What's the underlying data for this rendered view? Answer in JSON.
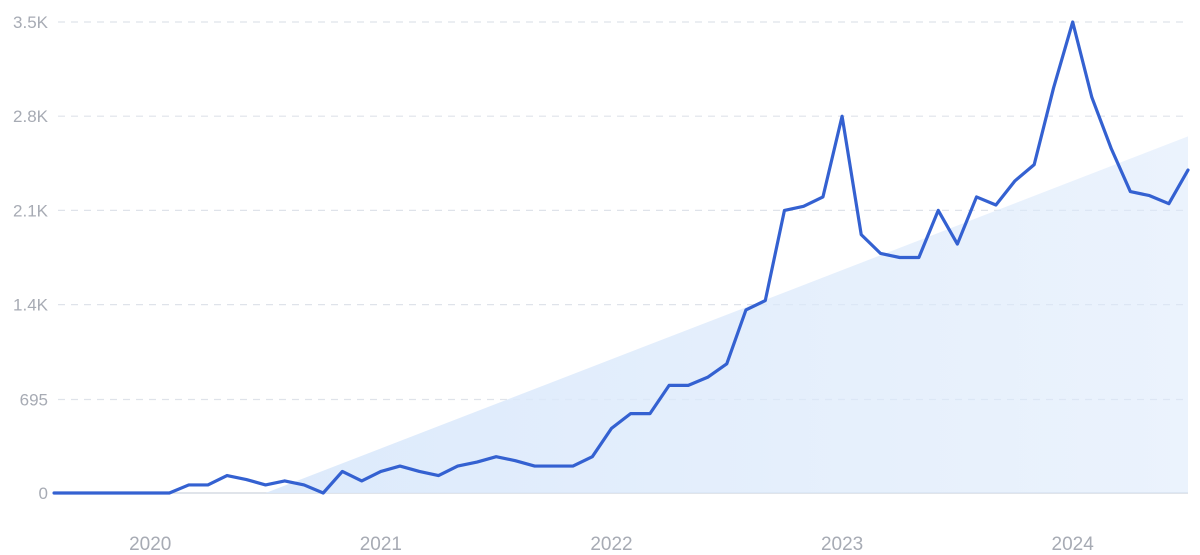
{
  "chart_data": {
    "type": "line",
    "title": "",
    "xlabel": "",
    "ylabel": "",
    "y_ticks": [
      {
        "value": 0,
        "label": "0"
      },
      {
        "value": 695,
        "label": "695"
      },
      {
        "value": 1400,
        "label": "1.4K"
      },
      {
        "value": 2100,
        "label": "2.1K"
      },
      {
        "value": 2800,
        "label": "2.8K"
      },
      {
        "value": 3500,
        "label": "3.5K"
      }
    ],
    "x_ticks": [
      {
        "value": 2020,
        "label": "2020"
      },
      {
        "value": 2021,
        "label": "2021"
      },
      {
        "value": 2022,
        "label": "2022"
      },
      {
        "value": 2023,
        "label": "2023"
      },
      {
        "value": 2024,
        "label": "2024"
      }
    ],
    "xlim": [
      2019.6,
      2024.5
    ],
    "ylim": [
      0,
      3500
    ],
    "grid": true,
    "colors": {
      "line": "#3461d1",
      "trend_fill": "#dbe9fb",
      "grid": "#dfe3ea",
      "tick_text": "#a7abb4"
    },
    "series": [
      {
        "x": [
          2019.583,
          2019.667,
          2019.75,
          2019.833,
          2019.917,
          2020.0,
          2020.083,
          2020.167,
          2020.25,
          2020.333,
          2020.417,
          2020.5,
          2020.583,
          2020.667,
          2020.75,
          2020.833,
          2020.917,
          2021.0,
          2021.083,
          2021.167,
          2021.25,
          2021.333,
          2021.417,
          2021.5,
          2021.583,
          2021.667,
          2021.75,
          2021.833,
          2021.917,
          2022.0,
          2022.083,
          2022.167,
          2022.25,
          2022.333,
          2022.417,
          2022.5,
          2022.583,
          2022.667,
          2022.75,
          2022.833,
          2022.917,
          2023.0,
          2023.083,
          2023.167,
          2023.25,
          2023.333,
          2023.417,
          2023.5,
          2023.583,
          2023.667,
          2023.75,
          2023.833,
          2023.917,
          2024.0,
          2024.083,
          2024.167,
          2024.25,
          2024.333,
          2024.417,
          2024.5
        ],
        "values": [
          0,
          0,
          0,
          0,
          0,
          0,
          0,
          60,
          60,
          130,
          100,
          60,
          90,
          60,
          0,
          160,
          90,
          160,
          200,
          160,
          130,
          200,
          230,
          270,
          240,
          200,
          200,
          200,
          270,
          480,
          590,
          590,
          800,
          800,
          860,
          960,
          1360,
          1430,
          2100,
          2130,
          2200,
          2800,
          1920,
          1780,
          1750,
          1750,
          2100,
          1850,
          2200,
          2140,
          2320,
          2440,
          3010,
          3500,
          2940,
          2560,
          2240,
          2210,
          2150,
          2400
        ]
      }
    ],
    "trend": {
      "x": [
        2020.5,
        2024.5
      ],
      "values": [
        0,
        2650
      ]
    }
  }
}
